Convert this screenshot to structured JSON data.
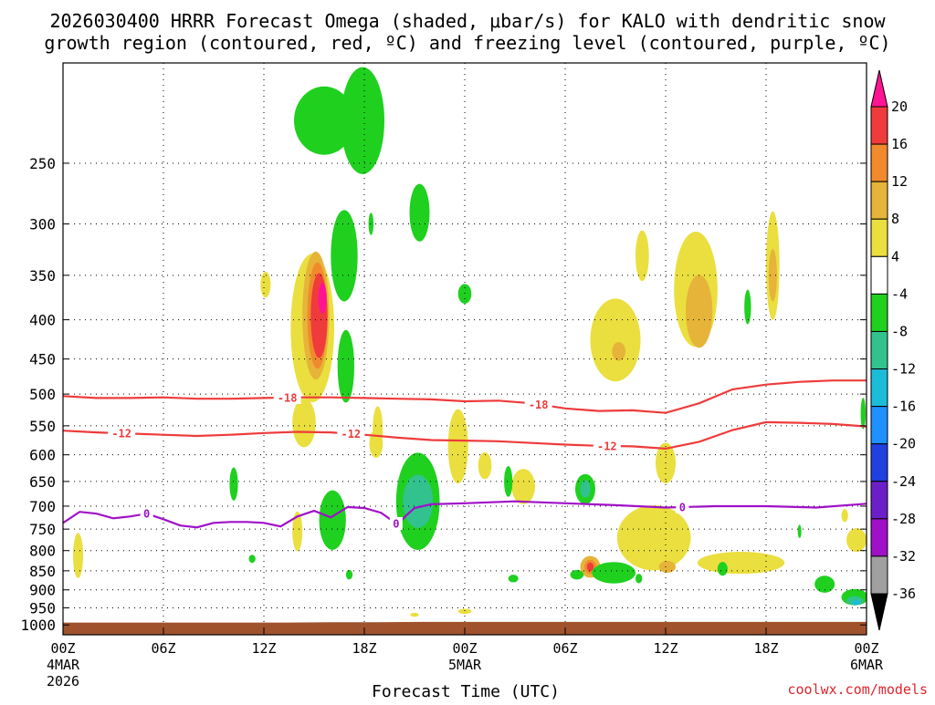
{
  "chart_data": {
    "type": "time-height cross section (filled contour)",
    "title_line1": "2026030400 HRRR Forecast Omega (shaded, μbar/s) for KALO with dendritic snow",
    "title_line2": "growth region (contoured, red, ºC) and freezing level (contoured, purple, ºC)",
    "xlabel": "Forecast Time (UTC)",
    "watermark": "coolwx.com/models",
    "x_range_hours": [
      0,
      48
    ],
    "y_range_hpa": [
      1030,
      185
    ],
    "x_ticks": [
      {
        "h": 0,
        "label": "00Z",
        "sub1": "4MAR",
        "sub2": "2026"
      },
      {
        "h": 6,
        "label": "06Z"
      },
      {
        "h": 12,
        "label": "12Z"
      },
      {
        "h": 18,
        "label": "18Z"
      },
      {
        "h": 24,
        "label": "00Z",
        "sub1": "5MAR"
      },
      {
        "h": 30,
        "label": "06Z"
      },
      {
        "h": 36,
        "label": "12Z"
      },
      {
        "h": 42,
        "label": "18Z"
      },
      {
        "h": 48,
        "label": "00Z",
        "sub1": "6MAR"
      }
    ],
    "y_ticks": [
      250,
      300,
      350,
      400,
      450,
      500,
      550,
      600,
      650,
      700,
      750,
      800,
      850,
      900,
      950,
      1000
    ],
    "colorbar": {
      "ticks": [
        "20",
        "16",
        "12",
        "8",
        "4",
        "-4",
        "-8",
        "-12",
        "-16",
        "-20",
        "-24",
        "-28",
        "-32",
        "-36"
      ],
      "colors": [
        "#ff1493",
        "#ef3b3b",
        "#f08a2c",
        "#e6b439",
        "#eadf3f",
        "#ffffff",
        "#1fd01f",
        "#32c28e",
        "#1bbcd8",
        "#1e90ff",
        "#2040e0",
        "#6b1fc8",
        "#a010c8",
        "#a0a0a0",
        "#000000"
      ]
    },
    "surface_pressure_hpa": [
      993,
      993,
      993,
      993,
      993,
      993,
      992,
      992,
      991,
      991,
      991,
      991,
      991,
      991,
      991,
      991,
      991,
      991,
      991
    ],
    "series": [
      {
        "name": "-18C isotherm (dendritic top)",
        "label": "-18",
        "color": "#ee3b3b",
        "hours": [
          0,
          2,
          4,
          6,
          8,
          10,
          12,
          14,
          16,
          18,
          20,
          22,
          24,
          26,
          28,
          30,
          32,
          34,
          36,
          38,
          40,
          42,
          44,
          46,
          48
        ],
        "pressure": [
          503,
          506,
          506,
          505,
          507,
          507,
          506,
          505,
          505,
          506,
          507,
          508,
          511,
          510,
          514,
          522,
          526,
          525,
          529,
          514,
          493,
          486,
          482,
          480,
          480
        ]
      },
      {
        "name": "-12C isotherm (dendritic bottom)",
        "label": "-12",
        "color": "#ee3b3b",
        "hours": [
          0,
          2,
          4,
          6,
          8,
          10,
          12,
          14,
          16,
          18,
          20,
          22,
          24,
          26,
          28,
          30,
          32,
          34,
          36,
          38,
          40,
          42,
          44,
          46,
          48
        ],
        "pressure": [
          558,
          561,
          563,
          565,
          567,
          565,
          562,
          560,
          561,
          565,
          570,
          574,
          575,
          576,
          579,
          582,
          584,
          585,
          589,
          577,
          557,
          544,
          545,
          547,
          551
        ]
      },
      {
        "name": "0C isotherm (freezing level)",
        "label": "0",
        "color": "#a010c8",
        "hours": [
          0,
          1,
          2,
          3,
          4,
          5,
          6,
          7,
          8,
          9,
          10,
          11,
          12,
          13,
          14,
          15,
          16,
          17,
          18,
          19,
          20,
          20.5,
          21,
          22,
          24,
          27,
          30,
          33,
          36,
          39,
          42,
          45,
          48
        ],
        "pressure": [
          736,
          712,
          716,
          726,
          722,
          716,
          728,
          742,
          746,
          736,
          734,
          734,
          736,
          744,
          722,
          710,
          724,
          702,
          704,
          714,
          740,
          720,
          704,
          696,
          694,
          690,
          694,
          698,
          703,
          700,
          700,
          703,
          695
        ]
      }
    ],
    "omega_regions": [
      {
        "category": "4 to 8",
        "color": "#eadf3f",
        "blobs": [
          {
            "h": 0.9,
            "p": 812,
            "dh": 0.3,
            "dp": 110
          },
          {
            "h": 12.1,
            "p": 360,
            "dh": 0.3,
            "dp": 28
          },
          {
            "h": 14.9,
            "p": 410,
            "dh": 1.3,
            "dp": 180
          },
          {
            "h": 14.4,
            "p": 545,
            "dh": 0.7,
            "dp": 80
          },
          {
            "h": 14.0,
            "p": 755,
            "dh": 0.3,
            "dp": 90
          },
          {
            "h": 18.8,
            "p": 555,
            "dh": 0.3,
            "dp": 75
          },
          {
            "h": 18.7,
            "p": 580,
            "dh": 0.4,
            "dp": 50
          },
          {
            "h": 25.2,
            "p": 620,
            "dh": 0.4,
            "dp": 50
          },
          {
            "h": 23.6,
            "p": 585,
            "dh": 0.6,
            "dp": 130
          },
          {
            "h": 24.0,
            "p": 960,
            "dh": 0.4,
            "dp": 15
          },
          {
            "h": 21.0,
            "p": 970,
            "dh": 0.25,
            "dp": 12
          },
          {
            "h": 27.5,
            "p": 660,
            "dh": 0.7,
            "dp": 70
          },
          {
            "h": 33.0,
            "p": 425,
            "dh": 1.5,
            "dp": 105
          },
          {
            "h": 34.6,
            "p": 330,
            "dh": 0.4,
            "dp": 50
          },
          {
            "h": 35.3,
            "p": 770,
            "dh": 2.2,
            "dp": 150
          },
          {
            "h": 37.8,
            "p": 365,
            "dh": 1.3,
            "dp": 125
          },
          {
            "h": 36.0,
            "p": 615,
            "dh": 0.6,
            "dp": 75
          },
          {
            "h": 40.5,
            "p": 830,
            "dh": 2.6,
            "dp": 55
          },
          {
            "h": 42.4,
            "p": 340,
            "dh": 0.4,
            "dp": 110
          },
          {
            "h": 46.7,
            "p": 720,
            "dh": 0.2,
            "dp": 28
          },
          {
            "h": 47.4,
            "p": 775,
            "dh": 0.6,
            "dp": 55
          }
        ]
      },
      {
        "category": "8 to 12",
        "color": "#e6b439",
        "blobs": [
          {
            "h": 15.1,
            "p": 395,
            "dh": 0.8,
            "dp": 150
          },
          {
            "h": 38.0,
            "p": 390,
            "dh": 0.8,
            "dp": 85
          },
          {
            "h": 42.4,
            "p": 350,
            "dh": 0.25,
            "dp": 55
          },
          {
            "h": 33.2,
            "p": 440,
            "dh": 0.4,
            "dp": 25
          },
          {
            "h": 31.5,
            "p": 840,
            "dh": 0.6,
            "dp": 55
          },
          {
            "h": 36.1,
            "p": 840,
            "dh": 0.5,
            "dp": 30
          }
        ]
      },
      {
        "category": "12 to 16",
        "color": "#f08a2c",
        "blobs": [
          {
            "h": 15.2,
            "p": 395,
            "dh": 0.6,
            "dp": 125
          },
          {
            "h": 31.5,
            "p": 840,
            "dh": 0.35,
            "dp": 35
          }
        ]
      },
      {
        "category": "16 to 20",
        "color": "#ef3b3b",
        "blobs": [
          {
            "h": 15.3,
            "p": 395,
            "dh": 0.5,
            "dp": 100
          },
          {
            "h": 31.5,
            "p": 840,
            "dh": 0.2,
            "dp": 22
          }
        ]
      },
      {
        "category": "> 20",
        "color": "#ff1493",
        "blobs": [
          {
            "h": 15.5,
            "p": 375,
            "dh": 0.25,
            "dp": 35
          }
        ]
      },
      {
        "category": "-4 to -8",
        "color": "#1fd01f",
        "blobs": [
          {
            "h": 15.6,
            "p": 220,
            "dh": 1.8,
            "dp": 45
          },
          {
            "h": 17.9,
            "p": 220,
            "dh": 1.3,
            "dp": 70
          },
          {
            "h": 16.8,
            "p": 330,
            "dh": 0.8,
            "dp": 90
          },
          {
            "h": 16.9,
            "p": 460,
            "dh": 0.5,
            "dp": 100
          },
          {
            "h": 21.3,
            "p": 290,
            "dh": 0.6,
            "dp": 50
          },
          {
            "h": 18.4,
            "p": 300,
            "dh": 0.15,
            "dp": 20
          },
          {
            "h": 10.2,
            "p": 655,
            "dh": 0.25,
            "dp": 65
          },
          {
            "h": 16.1,
            "p": 730,
            "dh": 0.8,
            "dp": 130
          },
          {
            "h": 21.2,
            "p": 690,
            "dh": 1.3,
            "dp": 200
          },
          {
            "h": 24.0,
            "p": 370,
            "dh": 0.4,
            "dp": 22
          },
          {
            "h": 26.6,
            "p": 650,
            "dh": 0.25,
            "dp": 60
          },
          {
            "h": 31.2,
            "p": 665,
            "dh": 0.6,
            "dp": 60
          },
          {
            "h": 30.7,
            "p": 860,
            "dh": 0.4,
            "dp": 25
          },
          {
            "h": 32.9,
            "p": 855,
            "dh": 1.3,
            "dp": 55
          },
          {
            "h": 39.4,
            "p": 845,
            "dh": 0.3,
            "dp": 35
          },
          {
            "h": 40.9,
            "p": 385,
            "dh": 0.2,
            "dp": 40
          },
          {
            "h": 44.0,
            "p": 755,
            "dh": 0.1,
            "dp": 30
          },
          {
            "h": 45.5,
            "p": 885,
            "dh": 0.6,
            "dp": 45
          },
          {
            "h": 47.3,
            "p": 920,
            "dh": 0.8,
            "dp": 45
          },
          {
            "h": 47.8,
            "p": 530,
            "dh": 0.15,
            "dp": 50
          },
          {
            "h": 11.3,
            "p": 820,
            "dh": 0.2,
            "dp": 20
          },
          {
            "h": 17.1,
            "p": 860,
            "dh": 0.2,
            "dp": 25
          },
          {
            "h": 26.9,
            "p": 870,
            "dh": 0.3,
            "dp": 20
          },
          {
            "h": 34.4,
            "p": 870,
            "dh": 0.2,
            "dp": 25
          }
        ]
      },
      {
        "category": "-8 to -12",
        "color": "#32c28e",
        "blobs": [
          {
            "h": 21.2,
            "p": 690,
            "dh": 0.9,
            "dp": 110
          },
          {
            "h": 31.2,
            "p": 665,
            "dh": 0.3,
            "dp": 35
          },
          {
            "h": 47.3,
            "p": 930,
            "dh": 0.5,
            "dp": 25
          }
        ]
      },
      {
        "category": "-12 to -16",
        "color": "#1bbcd8",
        "blobs": [
          {
            "h": 47.4,
            "p": 935,
            "dh": 0.25,
            "dp": 15
          }
        ]
      }
    ]
  }
}
